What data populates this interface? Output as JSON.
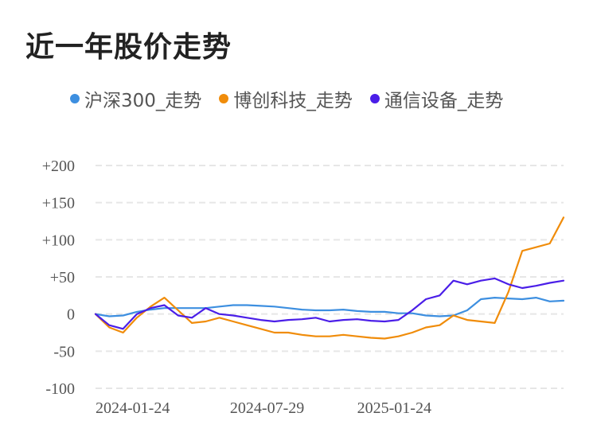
{
  "chart_data": {
    "type": "line",
    "title": "近一年股价走势",
    "x_ticks": [
      "2024-01-24",
      "2024-07-29",
      "2025-01-24"
    ],
    "y_ticks": [
      "+200",
      "+150",
      "+100",
      "+50",
      "0",
      "-50",
      "-100"
    ],
    "y_tick_values": [
      200,
      150,
      100,
      50,
      0,
      -50,
      -100
    ],
    "ylim": [
      -100,
      200
    ],
    "grid": "horizontal dashed",
    "legend": "top",
    "x": [
      "2024-01-24",
      "2024-02-08",
      "2024-02-23",
      "2024-03-09",
      "2024-03-24",
      "2024-04-08",
      "2024-04-23",
      "2024-05-08",
      "2024-05-23",
      "2024-06-07",
      "2024-06-22",
      "2024-07-07",
      "2024-07-22",
      "2024-08-06",
      "2024-08-21",
      "2024-09-05",
      "2024-09-20",
      "2024-10-05",
      "2024-10-20",
      "2024-11-04",
      "2024-11-19",
      "2024-12-04",
      "2024-12-19",
      "2025-01-03",
      "2025-01-18",
      "2025-02-02",
      "2025-02-17",
      "2025-03-04",
      "2025-03-19",
      "2025-04-03",
      "2025-04-18",
      "2025-05-03",
      "2025-05-18",
      "2025-06-02",
      "2025-06-17"
    ],
    "series": [
      {
        "name": "沪深300_走势",
        "color": "#3d8fe0",
        "values": [
          0,
          -3,
          -2,
          3,
          6,
          8,
          8,
          8,
          8,
          10,
          12,
          12,
          11,
          10,
          8,
          6,
          5,
          5,
          6,
          4,
          3,
          3,
          1,
          1,
          -2,
          -3,
          -2,
          5,
          20,
          22,
          21,
          20,
          22,
          17,
          18
        ]
      },
      {
        "name": "博创科技_走势",
        "color": "#f08c0a",
        "values": [
          0,
          -18,
          -25,
          -5,
          10,
          22,
          5,
          -12,
          -10,
          -5,
          -10,
          -15,
          -20,
          -25,
          -25,
          -28,
          -30,
          -30,
          -28,
          -30,
          -32,
          -33,
          -30,
          -25,
          -18,
          -15,
          -2,
          -8,
          -10,
          -12,
          30,
          85,
          90,
          95,
          130
        ]
      },
      {
        "name": "通信设备_走势",
        "color": "#4a1ee8",
        "values": [
          0,
          -15,
          -20,
          0,
          8,
          12,
          -2,
          -5,
          8,
          0,
          -2,
          -5,
          -8,
          -10,
          -8,
          -7,
          -5,
          -10,
          -8,
          -7,
          -9,
          -10,
          -8,
          5,
          20,
          25,
          45,
          40,
          45,
          48,
          40,
          35,
          38,
          42,
          45
        ]
      }
    ]
  }
}
